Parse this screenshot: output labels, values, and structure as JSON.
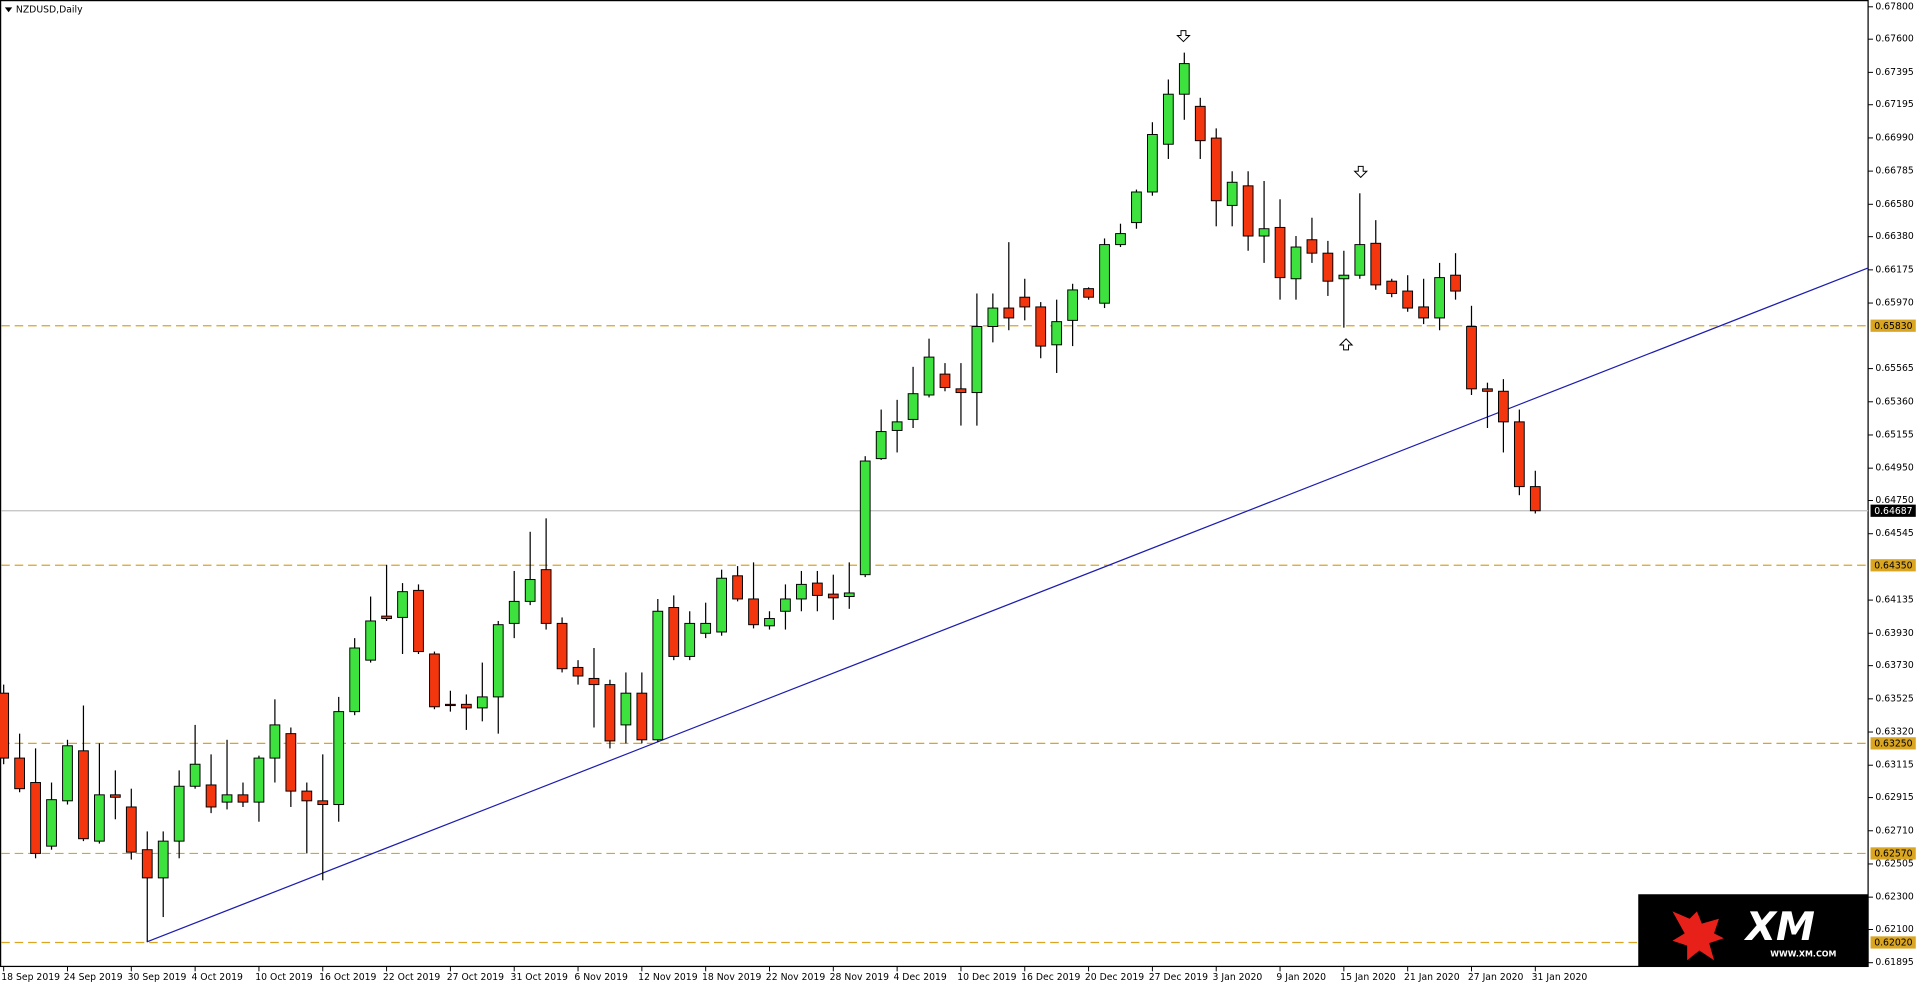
{
  "chart_data": {
    "type": "candlestick",
    "title": "NZDUSD,Daily",
    "categories": [
      "18 Sep 2019",
      null,
      null,
      null,
      "24 Sep 2019",
      null,
      null,
      null,
      "30 Sep 2019",
      null,
      null,
      null,
      "4 Oct 2019",
      null,
      null,
      null,
      "10 Oct 2019",
      null,
      null,
      null,
      "16 Oct 2019",
      null,
      null,
      null,
      "22 Oct 2019",
      null,
      null,
      null,
      "27 Oct 2019",
      null,
      null,
      null,
      "31 Oct 2019",
      null,
      null,
      null,
      "6 Nov 2019",
      null,
      null,
      null,
      "12 Nov 2019",
      null,
      null,
      null,
      "18 Nov 2019",
      null,
      null,
      null,
      "22 Nov 2019",
      null,
      null,
      null,
      "28 Nov 2019",
      null,
      null,
      null,
      "4 Dec 2019",
      null,
      null,
      null,
      "10 Dec 2019",
      null,
      null,
      null,
      "16 Dec 2019",
      null,
      null,
      null,
      "20 Dec 2019",
      null,
      null,
      null,
      "27 Dec 2019",
      null,
      null,
      null,
      "3 Jan 2020",
      null,
      null,
      null,
      "9 Jan 2020",
      null,
      null,
      null,
      "15 Jan 2020",
      null,
      null,
      null,
      "21 Jan 2020",
      null,
      null,
      null,
      "27 Jan 2020",
      null,
      null,
      null,
      "31 Jan 2020"
    ],
    "open": [
      0.6356,
      0.63159,
      0.63008,
      0.62615,
      0.62895,
      0.63204,
      0.62646,
      0.62932,
      0.62857,
      0.62593,
      0.62419,
      0.62646,
      0.62985,
      0.62993,
      0.62887,
      0.62932,
      0.62887,
      0.63159,
      0.6331,
      0.62955,
      0.62895,
      0.62872,
      0.63446,
      0.63764,
      0.64036,
      0.64028,
      0.64195,
      0.63802,
      0.63491,
      0.63491,
      0.63469,
      0.63537,
      0.63991,
      0.64127,
      0.64323,
      0.63991,
      0.63719,
      0.63651,
      0.63613,
      0.63364,
      0.6356,
      0.63272,
      0.64089,
      0.63787,
      0.6393,
      0.63938,
      0.64285,
      0.64142,
      0.63976,
      0.64066,
      0.64142,
      0.6424,
      0.64172,
      0.64157,
      0.64292,
      0.65009,
      0.65183,
      0.65251,
      0.65402,
      0.65531,
      0.6544,
      0.65417,
      0.65825,
      0.65939,
      0.66006,
      0.65946,
      0.65712,
      0.65863,
      0.66059,
      0.65969,
      0.66331,
      0.66467,
      0.66656,
      0.66951,
      0.6726,
      0.67185,
      0.66989,
      0.66573,
      0.66694,
      0.66384,
      0.66437,
      0.6612,
      0.66361,
      0.66278,
      0.6612,
      0.66142,
      0.66339,
      0.66105,
      0.66044,
      0.65946,
      0.65878,
      0.66142,
      0.65825,
      0.6544,
      0.65425,
      0.65236,
      0.64836
    ],
    "high": [
      0.63613,
      0.6331,
      0.63219,
      0.63008,
      0.63272,
      0.63484,
      0.6325,
      0.63083,
      0.6297,
      0.62706,
      0.62706,
      0.63083,
      0.63364,
      0.63182,
      0.63272,
      0.63008,
      0.63174,
      0.63522,
      0.63348,
      0.63008,
      0.63182,
      0.63537,
      0.639,
      0.64157,
      0.64353,
      0.6424,
      0.64232,
      0.63817,
      0.63575,
      0.63552,
      0.63749,
      0.64006,
      0.64315,
      0.64557,
      0.6464,
      0.64028,
      0.63764,
      0.63839,
      0.63643,
      0.63688,
      0.63688,
      0.64142,
      0.64164,
      0.64066,
      0.64119,
      0.64323,
      0.64345,
      0.64368,
      0.64066,
      0.64232,
      0.64315,
      0.64315,
      0.64292,
      0.64368,
      0.65024,
      0.65312,
      0.65372,
      0.65576,
      0.6575,
      0.65599,
      0.65599,
      0.66029,
      0.66029,
      0.66346,
      0.6612,
      0.65976,
      0.65991,
      0.66089,
      0.66067,
      0.66369,
      0.6646,
      0.66671,
      0.67087,
      0.67351,
      0.67517,
      0.67238,
      0.67049,
      0.66784,
      0.66784,
      0.66724,
      0.66611,
      0.66384,
      0.66497,
      0.66354,
      0.66293,
      0.66648,
      0.66482,
      0.6612,
      0.66142,
      0.6612,
      0.66218,
      0.66278,
      0.65953,
      0.65478,
      0.655,
      0.65312,
      0.64934
    ],
    "low": [
      0.63121,
      0.62948,
      0.6254,
      0.62593,
      0.62872,
      0.62646,
      0.62631,
      0.62781,
      0.62532,
      0.62026,
      0.62177,
      0.6254,
      0.6297,
      0.62819,
      0.62842,
      0.62857,
      0.62766,
      0.63008,
      0.62857,
      0.6257,
      0.62404,
      0.62766,
      0.63424,
      0.63749,
      0.64006,
      0.63802,
      0.63802,
      0.63461,
      0.63446,
      0.63333,
      0.63386,
      0.6331,
      0.639,
      0.64104,
      0.63953,
      0.63688,
      0.63613,
      0.63348,
      0.63219,
      0.6325,
      0.6325,
      0.63257,
      0.63764,
      0.63764,
      0.639,
      0.63915,
      0.64127,
      0.6396,
      0.63953,
      0.63953,
      0.64066,
      0.64066,
      0.64013,
      0.64081,
      0.64277,
      0.65001,
      0.65047,
      0.65198,
      0.65387,
      0.65425,
      0.65213,
      0.65213,
      0.65727,
      0.65802,
      0.65863,
      0.65629,
      0.65538,
      0.65704,
      0.65991,
      0.65939,
      0.66316,
      0.66429,
      0.66633,
      0.6686,
      0.67102,
      0.6686,
      0.66444,
      0.66444,
      0.66293,
      0.66218,
      0.65991,
      0.65991,
      0.66218,
      0.66014,
      0.65818,
      0.6612,
      0.66052,
      0.66006,
      0.65916,
      0.6584,
      0.65802,
      0.65991,
      0.65402,
      0.65198,
      0.65047,
      0.64783,
      0.6467
    ],
    "close": [
      0.63159,
      0.6297,
      0.6257,
      0.62902,
      0.63235,
      0.62661,
      0.62932,
      0.62917,
      0.62578,
      0.62419,
      0.62646,
      0.62985,
      0.63121,
      0.62857,
      0.62932,
      0.62887,
      0.63159,
      0.63364,
      0.62955,
      0.62895,
      0.62872,
      0.63446,
      0.63839,
      0.64006,
      0.64021,
      0.64187,
      0.63817,
      0.63476,
      0.63484,
      0.63469,
      0.63537,
      0.63983,
      0.64127,
      0.64262,
      0.63991,
      0.63711,
      0.63666,
      0.63613,
      0.63265,
      0.6356,
      0.63272,
      0.64066,
      0.63787,
      0.63991,
      0.63991,
      0.6427,
      0.64142,
      0.63983,
      0.64021,
      0.64142,
      0.64232,
      0.64164,
      0.64149,
      0.64179,
      0.64994,
      0.65176,
      0.65236,
      0.6541,
      0.65636,
      0.65448,
      0.65417,
      0.65825,
      0.65939,
      0.65878,
      0.65946,
      0.65704,
      0.65855,
      0.66051,
      0.66006,
      0.66331,
      0.66399,
      0.66656,
      0.67011,
      0.6726,
      0.67449,
      0.66973,
      0.66602,
      0.66716,
      0.66384,
      0.66429,
      0.66127,
      0.66316,
      0.66278,
      0.66105,
      0.66142,
      0.66331,
      0.66082,
      0.66029,
      0.65939,
      0.65878,
      0.66127,
      0.66044,
      0.6544,
      0.65425,
      0.65236,
      0.64836,
      0.64687
    ],
    "up_color": "#3ee23e",
    "down_color": "#f4360f",
    "level_color": "#daa520",
    "ylim": [
      0.61872,
      0.67842
    ],
    "yticks": [
      {
        "value": 0.678,
        "label": "0.67800"
      },
      {
        "value": 0.676,
        "label": "0.67600"
      },
      0.67395,
      0.67195,
      {
        "value": 0.6699,
        "label": "0.66990"
      },
      0.66785,
      {
        "value": 0.6658,
        "label": "0.66580"
      },
      {
        "value": 0.6638,
        "label": "0.66380"
      },
      0.66175,
      {
        "value": 0.6597,
        "label": "0.65970"
      },
      0.65565,
      {
        "value": 0.6536,
        "label": "0.65360"
      },
      0.65155,
      {
        "value": 0.6495,
        "label": "0.64950"
      },
      {
        "value": 0.6475,
        "label": "0.64750"
      },
      0.64545,
      0.64135,
      {
        "value": 0.6393,
        "label": "0.63930"
      },
      {
        "value": 0.6373,
        "label": "0.63730"
      },
      0.63525,
      {
        "value": 0.6332,
        "label": "0.63320"
      },
      0.63115,
      0.62915,
      {
        "value": 0.6271,
        "label": "0.62710"
      },
      0.62505,
      {
        "value": 0.623,
        "label": "0.62300"
      },
      {
        "value": 0.621,
        "label": "0.62100"
      },
      0.61895
    ],
    "levels": [
      {
        "value": 0.6583,
        "label": "0.65830"
      },
      {
        "value": 0.6435,
        "label": "0.64350"
      },
      {
        "value": 0.6325,
        "label": "0.63250"
      },
      {
        "value": 0.6257,
        "label": "0.62570"
      },
      {
        "value": 0.6202,
        "label": "0.62020"
      }
    ],
    "last_price": 0.64687,
    "logo": {
      "brand": "XM",
      "url": "WWW.XM.COM"
    }
  }
}
